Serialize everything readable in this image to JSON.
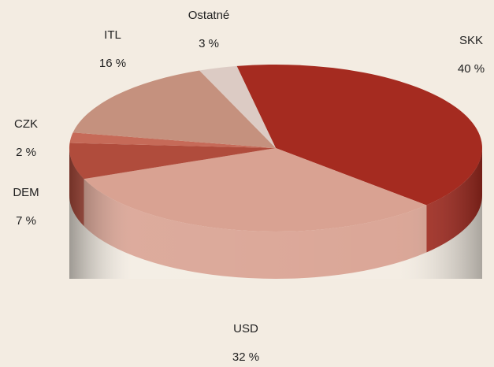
{
  "chart_data": {
    "type": "pie",
    "categories": [
      "SKK",
      "USD",
      "DEM",
      "CZK",
      "ITL",
      "Ostatné"
    ],
    "values": [
      40,
      32,
      7,
      2,
      16,
      3
    ],
    "value_labels": [
      "40 %",
      "32 %",
      "7 %",
      "2 %",
      "16 %",
      "3 %"
    ],
    "colors": [
      "#a52b20",
      "#d9a292",
      "#b04c3c",
      "#c66a58",
      "#c5917e",
      "#dccbc4"
    ]
  }
}
